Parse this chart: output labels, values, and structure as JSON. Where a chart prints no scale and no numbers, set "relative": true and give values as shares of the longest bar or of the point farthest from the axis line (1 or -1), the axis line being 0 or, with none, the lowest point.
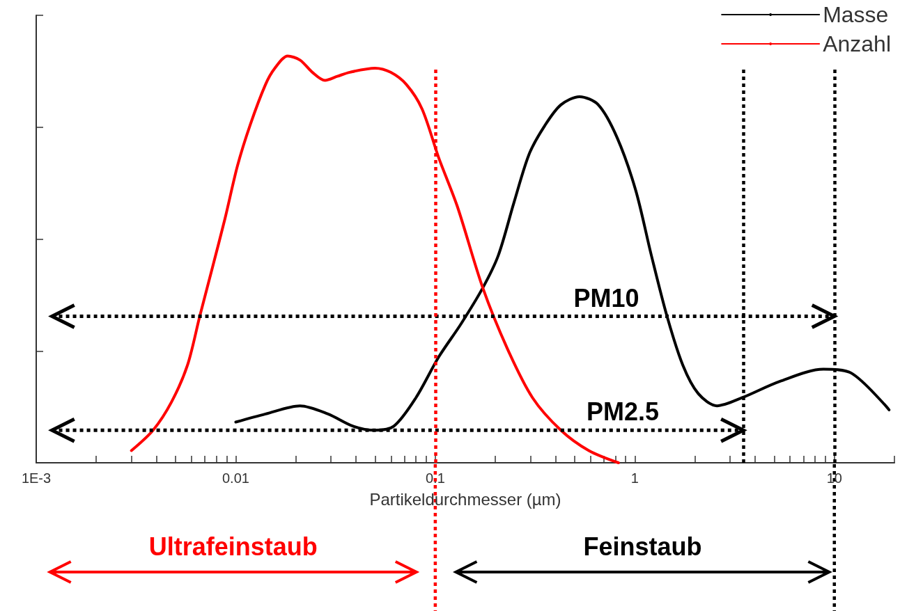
{
  "chart_data": {
    "type": "line",
    "xlabel": "Partikeldurchmesser (µm)",
    "relative": true,
    "log": "x",
    "xlim": [
      0.001,
      20
    ],
    "xticks": [
      {
        "value": 0.001,
        "label": "1E-3"
      },
      {
        "value": 0.002,
        "label": null
      },
      {
        "value": 0.003,
        "label": null
      },
      {
        "value": 0.004,
        "label": null
      },
      {
        "value": 0.005,
        "label": null
      },
      {
        "value": 0.006,
        "label": null
      },
      {
        "value": 0.007,
        "label": null
      },
      {
        "value": 0.008,
        "label": null
      },
      {
        "value": 0.009,
        "label": null
      },
      0.01,
      {
        "value": 0.02,
        "label": null
      },
      {
        "value": 0.03,
        "label": null
      },
      {
        "value": 0.04,
        "label": null
      },
      {
        "value": 0.05,
        "label": null
      },
      {
        "value": 0.06,
        "label": null
      },
      {
        "value": 0.07,
        "label": null
      },
      {
        "value": 0.08,
        "label": null
      },
      {
        "value": 0.09,
        "label": null
      },
      0.1,
      {
        "value": 0.2,
        "label": null
      },
      {
        "value": 0.3,
        "label": null
      },
      {
        "value": 0.4,
        "label": null
      },
      {
        "value": 0.5,
        "label": null
      },
      {
        "value": 0.6,
        "label": null
      },
      {
        "value": 0.7,
        "label": null
      },
      {
        "value": 0.8,
        "label": null
      },
      {
        "value": 0.9,
        "label": null
      },
      1,
      {
        "value": 2,
        "label": null
      },
      {
        "value": 3,
        "label": null
      },
      {
        "value": 4,
        "label": null
      },
      {
        "value": 5,
        "label": null
      },
      {
        "value": 6,
        "label": null
      },
      {
        "value": 7,
        "label": null
      },
      {
        "value": 8,
        "label": null
      },
      {
        "value": 9,
        "label": null
      },
      10,
      {
        "value": 20,
        "label": null
      }
    ],
    "tick_labels": "x",
    "legend": "top right",
    "marker": "none",
    "series": [
      {
        "name": "Masse",
        "color": "#000000",
        "x": [
          0.01,
          0.0141,
          0.021,
          0.029,
          0.0387,
          0.0499,
          0.062,
          0.08,
          0.104,
          0.134,
          0.173,
          0.207,
          0.248,
          0.296,
          0.355,
          0.426,
          0.528,
          0.656,
          0.814,
          1.01,
          1.21,
          1.45,
          1.74,
          2.08,
          2.58,
          3.45,
          5.32,
          8.82,
          12.2,
          18.8
        ],
        "values": [
          0.1,
          0.12,
          0.14,
          0.12,
          0.09,
          0.08,
          0.09,
          0.16,
          0.26,
          0.34,
          0.43,
          0.51,
          0.64,
          0.76,
          0.83,
          0.88,
          0.9,
          0.88,
          0.8,
          0.67,
          0.51,
          0.36,
          0.24,
          0.17,
          0.14,
          0.16,
          0.2,
          0.23,
          0.22,
          0.13
        ]
      },
      {
        "name": "Anzahl",
        "color": "#ff0000",
        "x": [
          0.003,
          0.00385,
          0.00477,
          0.00573,
          0.0066,
          0.00764,
          0.00883,
          0.0102,
          0.0118,
          0.0141,
          0.0157,
          0.0182,
          0.021,
          0.0242,
          0.028,
          0.0323,
          0.0373,
          0.0499,
          0.0597,
          0.0716,
          0.0858,
          0.104,
          0.129,
          0.173,
          0.23,
          0.307,
          0.426,
          0.588,
          0.828
        ],
        "values": [
          0.03,
          0.08,
          0.15,
          0.24,
          0.36,
          0.48,
          0.6,
          0.73,
          0.83,
          0.93,
          0.97,
          1.0,
          0.99,
          0.96,
          0.94,
          0.95,
          0.96,
          0.97,
          0.96,
          0.93,
          0.87,
          0.75,
          0.63,
          0.43,
          0.28,
          0.16,
          0.08,
          0.03,
          0.0
        ]
      },
      {
        "color": "#000000",
        "line_style": "dotted",
        "x": [
          0.0012,
          10
        ],
        "values": [
          0.36,
          0.36
        ]
      },
      {
        "color": "#000000",
        "line_style": "dotted",
        "x": [
          0.0012,
          3.5
        ],
        "values": [
          0.08,
          0.08
        ]
      }
    ],
    "ref_lines": [
      {
        "axis": "x",
        "value": 0.1,
        "color": "#ff0000",
        "line_style": "dotted"
      },
      {
        "axis": "x",
        "value": 3.5,
        "color": "#000000",
        "line_style": "dotted"
      },
      {
        "axis": "x",
        "value": 10,
        "color": "#000000",
        "line_style": "dotted"
      }
    ],
    "annotations": [
      {
        "text": "PM10",
        "x": 0.72,
        "y": 0.36
      },
      {
        "text": "PM2.5",
        "x": 0.87,
        "y": 0.08
      },
      "Ultrafeinstaub",
      "Feinstaub"
    ]
  }
}
